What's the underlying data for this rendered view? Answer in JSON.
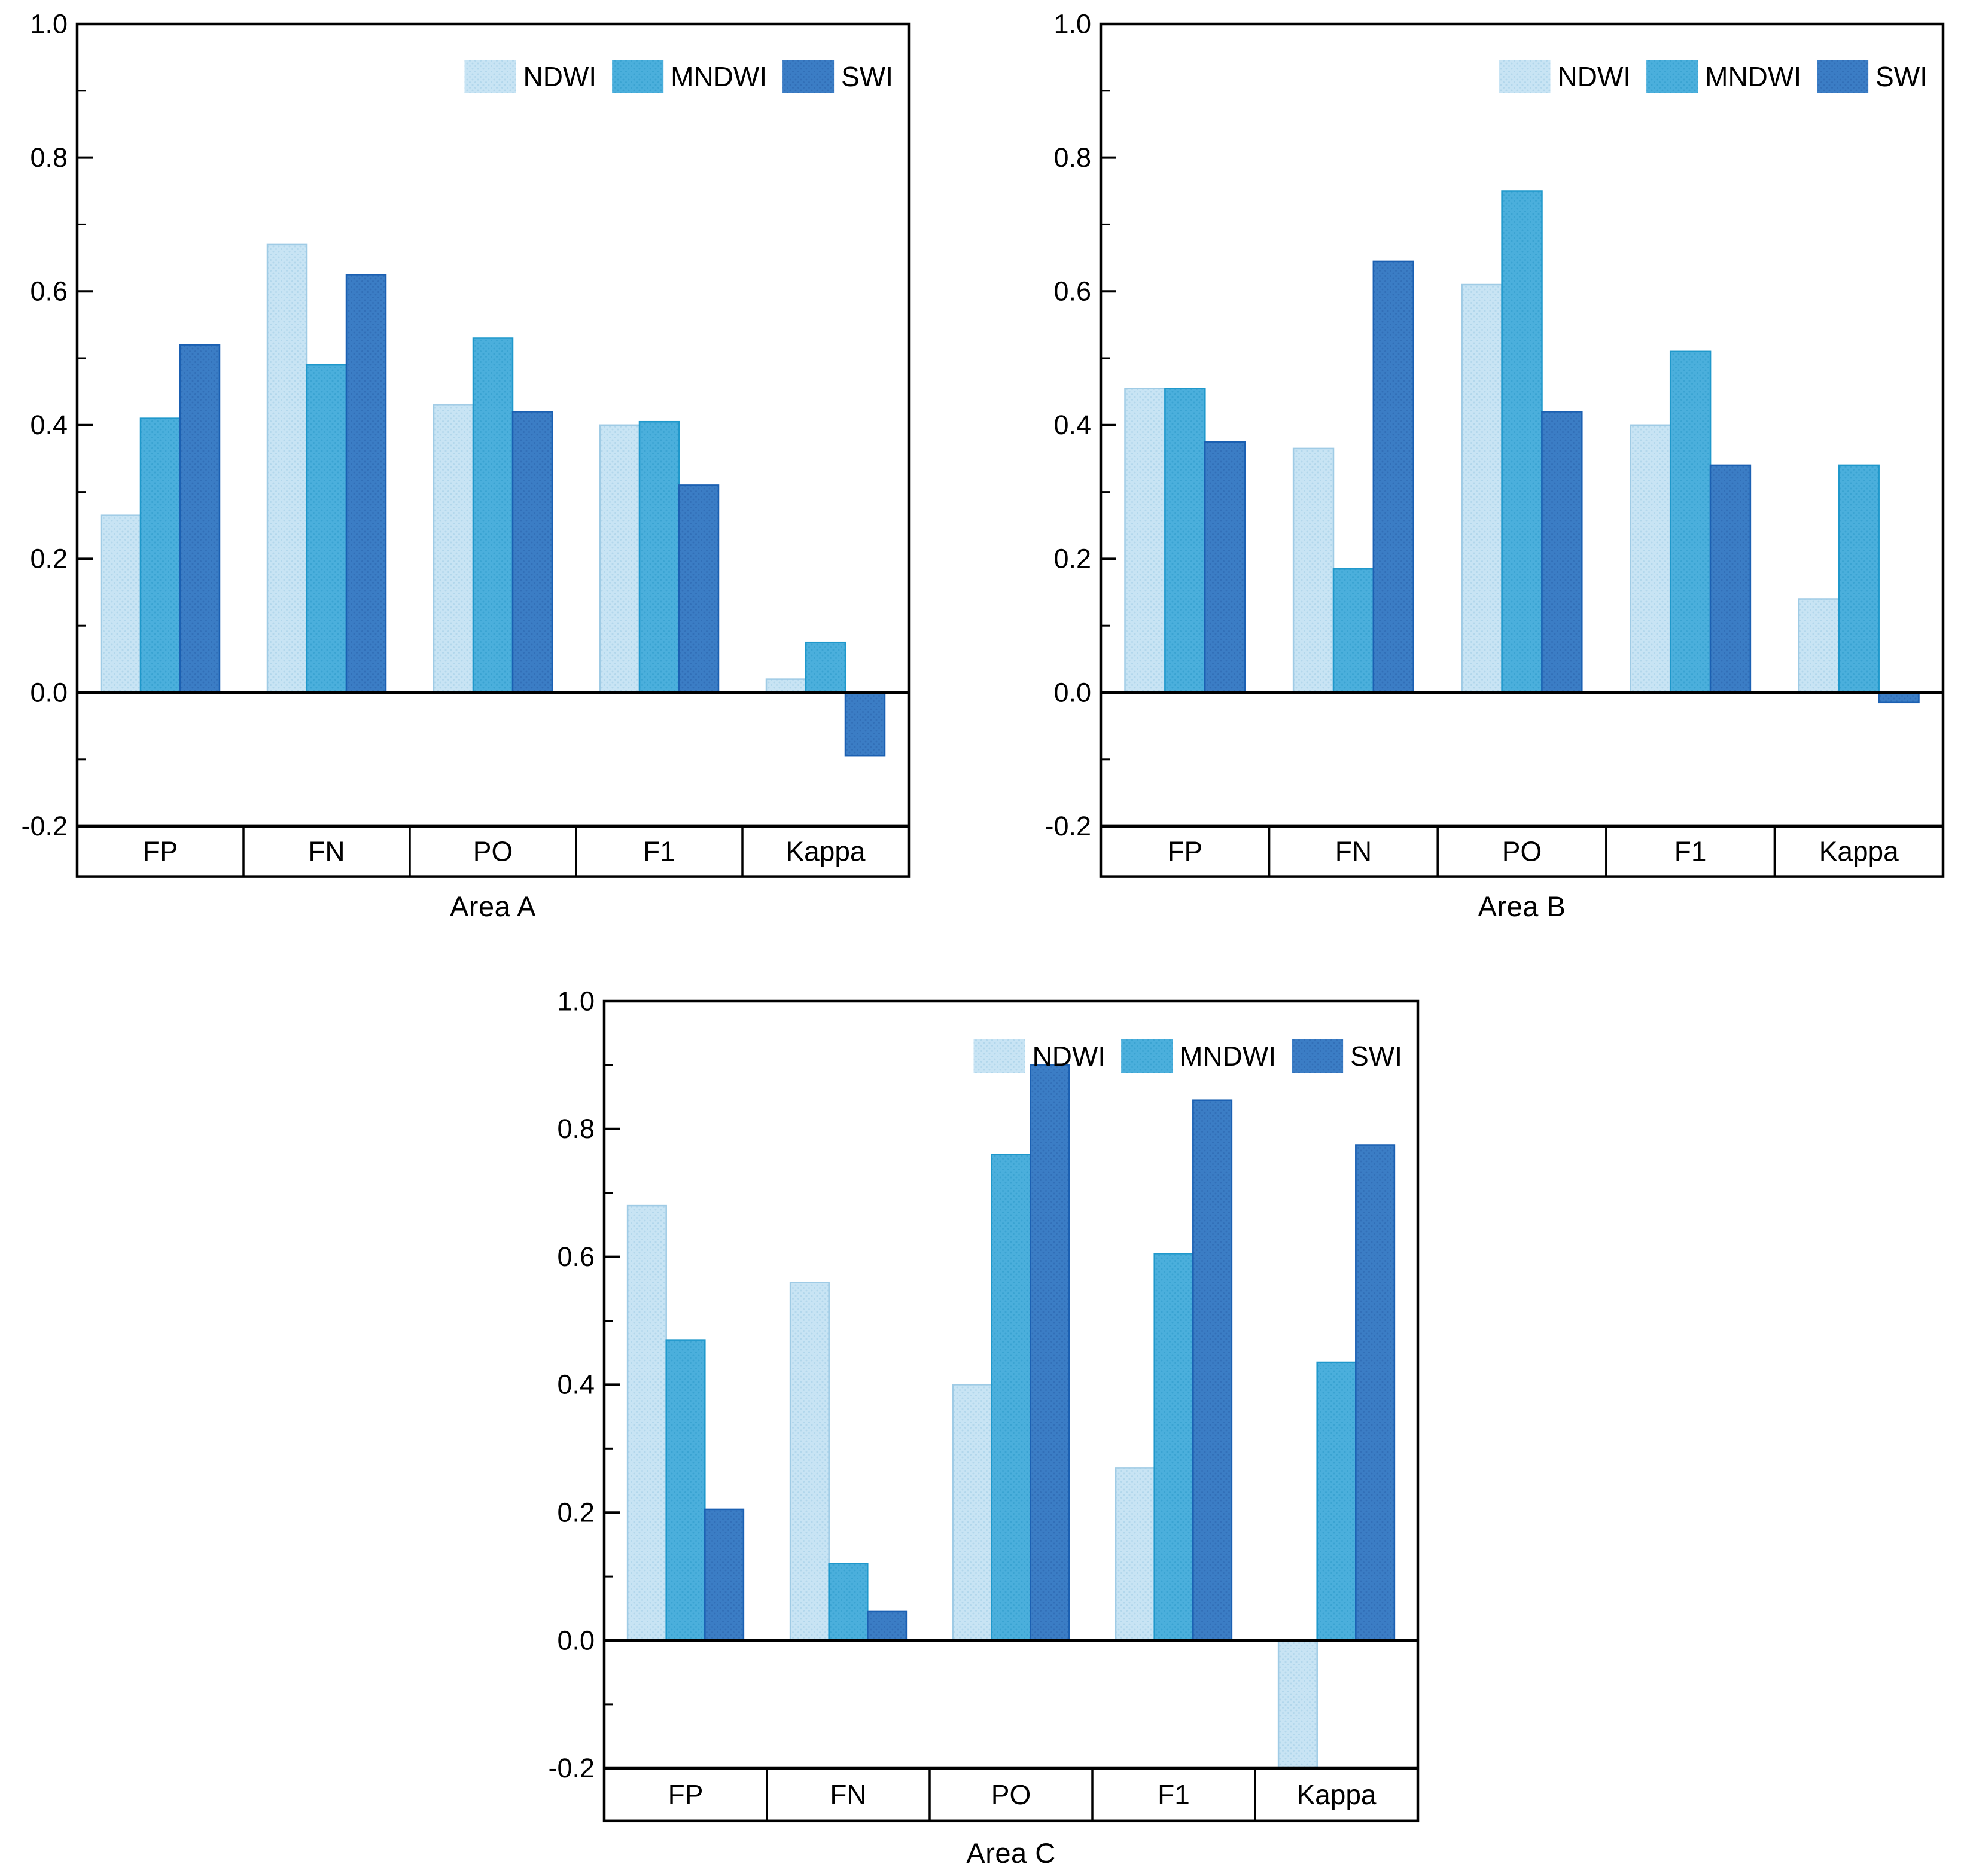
{
  "figure": {
    "background": "#ffffff",
    "text_color": "#000000"
  },
  "palette": {
    "ndwi_fill": "#c8e4f4",
    "ndwi_dot": "#b2d7ec",
    "ndwi_border": "#9fcbe5",
    "mndwi_fill": "#4bafdc",
    "mndwi_dot": "#3aa3d2",
    "mndwi_border": "#1f98cb",
    "swi_fill": "#3b7dc5",
    "swi_dot": "#326fb8",
    "swi_border": "#1b60b2",
    "axis_color": "#000000"
  },
  "legend": {
    "items": [
      {
        "label": "NDWI",
        "fill": "#c8e4f4",
        "dot": "#b2d7ec",
        "border": "#9fcbe5"
      },
      {
        "label": "MNDWI",
        "fill": "#4bafdc",
        "dot": "#3aa3d2",
        "border": "#1f98cb"
      },
      {
        "label": "SWI",
        "fill": "#3b7dc5",
        "dot": "#326fb8",
        "border": "#1b60b2"
      }
    ],
    "position": "top-right-inside"
  },
  "axis": {
    "y_min": -0.2,
    "y_max": 1.0,
    "major_step": 0.2,
    "minor_step": 0.1,
    "y_tick_labels": [
      "1.0",
      "0.8",
      "0.6",
      "0.4",
      "0.2",
      "0.0",
      "-0.2"
    ],
    "grid": "off",
    "ticks_inward": true
  },
  "chart_data": [
    {
      "type": "bar",
      "title": "Area A",
      "categories": [
        "FP",
        "FN",
        "PO",
        "F1",
        "Kappa"
      ],
      "ylim": [
        -0.2,
        1.0
      ],
      "series": [
        {
          "name": "NDWI",
          "values": [
            0.265,
            0.67,
            0.43,
            0.4,
            0.02
          ]
        },
        {
          "name": "MNDWI",
          "values": [
            0.41,
            0.49,
            0.53,
            0.405,
            0.075
          ]
        },
        {
          "name": "SWI",
          "values": [
            0.52,
            0.625,
            0.42,
            0.31,
            -0.095
          ]
        }
      ]
    },
    {
      "type": "bar",
      "title": "Area B",
      "categories": [
        "FP",
        "FN",
        "PO",
        "F1",
        "Kappa"
      ],
      "ylim": [
        -0.2,
        1.0
      ],
      "series": [
        {
          "name": "NDWI",
          "values": [
            0.455,
            0.365,
            0.61,
            0.4,
            0.14
          ]
        },
        {
          "name": "MNDWI",
          "values": [
            0.455,
            0.185,
            0.75,
            0.51,
            0.34
          ]
        },
        {
          "name": "SWI",
          "values": [
            0.375,
            0.645,
            0.42,
            0.34,
            -0.015
          ]
        }
      ]
    },
    {
      "type": "bar",
      "title": "Area C",
      "categories": [
        "FP",
        "FN",
        "PO",
        "F1",
        "Kappa"
      ],
      "ylim": [
        -0.2,
        1.0
      ],
      "series": [
        {
          "name": "NDWI",
          "values": [
            0.68,
            0.56,
            0.4,
            0.27,
            -0.2
          ]
        },
        {
          "name": "MNDWI",
          "values": [
            0.47,
            0.12,
            0.76,
            0.605,
            0.435
          ]
        },
        {
          "name": "SWI",
          "values": [
            0.205,
            0.045,
            0.9,
            0.845,
            0.775
          ]
        }
      ]
    }
  ]
}
